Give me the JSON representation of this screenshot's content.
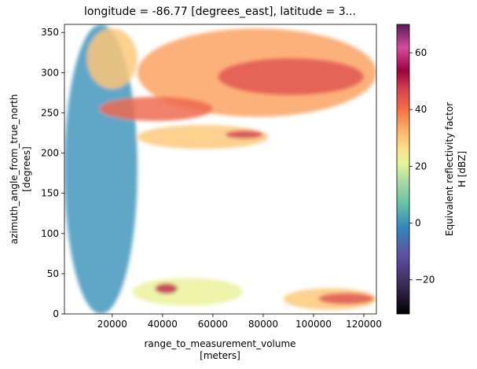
{
  "chart_data": {
    "type": "heatmap",
    "title": "longitude = -86.77 [degrees_east], latitude = 3...",
    "xlabel_line1": "range_to_measurement_volume",
    "xlabel_line2": "[meters]",
    "ylabel_line1": "azimuth_angle_from_true_north",
    "ylabel_line2": "[degrees]",
    "xlim": [
      1000,
      125000
    ],
    "ylim": [
      0,
      360
    ],
    "x_ticks": [
      {
        "value": 20000,
        "label": "20000"
      },
      {
        "value": 40000,
        "label": "40000"
      },
      {
        "value": 60000,
        "label": "60000"
      },
      {
        "value": 80000,
        "label": "80000"
      },
      {
        "value": 100000,
        "label": "100000"
      },
      {
        "value": 120000,
        "label": "120000"
      }
    ],
    "y_ticks": [
      {
        "value": 0,
        "label": "0"
      },
      {
        "value": 50,
        "label": "50"
      },
      {
        "value": 100,
        "label": "100"
      },
      {
        "value": 150,
        "label": "150"
      },
      {
        "value": 200,
        "label": "200"
      },
      {
        "value": 250,
        "label": "250"
      },
      {
        "value": 300,
        "label": "300"
      },
      {
        "value": 350,
        "label": "350"
      }
    ],
    "colorbar": {
      "label_line1": "Equivalent reflectivity factor",
      "label_line2": "H [dBZ]",
      "range": [
        -32,
        70
      ],
      "colormap": "Spectral_r",
      "ticks": [
        {
          "value": -20,
          "label": "−20"
        },
        {
          "value": 0,
          "label": "0"
        },
        {
          "value": 20,
          "label": "20"
        },
        {
          "value": 40,
          "label": "40"
        },
        {
          "value": 60,
          "label": "60"
        }
      ]
    },
    "echo_regions": [
      {
        "x0": 1000,
        "x1": 30000,
        "y0": 0,
        "y1": 360,
        "value": 0
      },
      {
        "x0": 10000,
        "x1": 30000,
        "y0": 280,
        "y1": 355,
        "value": 30
      },
      {
        "x0": 30000,
        "x1": 125000,
        "y0": 245,
        "y1": 355,
        "value": 35
      },
      {
        "x0": 62000,
        "x1": 120000,
        "y0": 272,
        "y1": 318,
        "value": 45
      },
      {
        "x0": 15000,
        "x1": 60000,
        "y0": 240,
        "y1": 270,
        "value": 42
      },
      {
        "x0": 30000,
        "x1": 82000,
        "y0": 205,
        "y1": 235,
        "value": 30
      },
      {
        "x0": 65000,
        "x1": 80000,
        "y0": 218,
        "y1": 228,
        "value": 48
      },
      {
        "x0": 28000,
        "x1": 72000,
        "y0": 10,
        "y1": 45,
        "value": 22
      },
      {
        "x0": 37000,
        "x1": 46000,
        "y0": 25,
        "y1": 38,
        "value": 50
      },
      {
        "x0": 88000,
        "x1": 125000,
        "y0": 5,
        "y1": 32,
        "value": 30
      },
      {
        "x0": 102000,
        "x1": 124000,
        "y0": 12,
        "y1": 26,
        "value": 45
      }
    ]
  }
}
